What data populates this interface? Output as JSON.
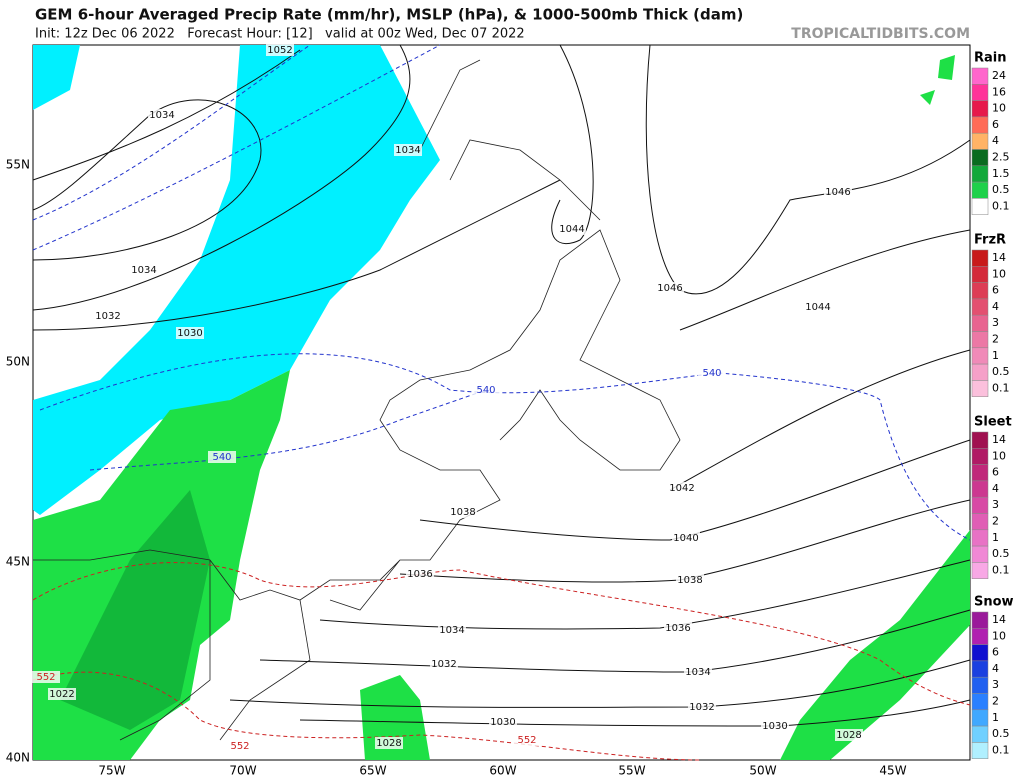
{
  "header": {
    "title": "GEM 6-hour Averaged Precip Rate (mm/hr), MSLP (hPa), & 1000-500mb Thick (dam)",
    "subtitle": "Init: 12z Dec 06 2022   Forecast Hour: [12]   valid at 00z Wed, Dec 07 2022",
    "watermark": "TROPICALTIDBITS.COM"
  },
  "map": {
    "lat_labels": [
      "55N",
      "50N",
      "45N",
      "40N"
    ],
    "lon_labels": [
      "75W",
      "70W",
      "65W",
      "60W",
      "55W",
      "50W",
      "45W"
    ],
    "contour_labels": [
      "1052",
      "1034",
      "1034",
      "1044",
      "1046",
      "1046",
      "1044",
      "1034",
      "1032",
      "1030",
      "540",
      "540",
      "540",
      "1042",
      "1038",
      "1040",
      "1036",
      "1038",
      "1034",
      "1036",
      "1032",
      "1034",
      "1032",
      "552",
      "1022",
      "1030",
      "1030",
      "1028",
      "1028",
      "552",
      "552"
    ]
  },
  "legend": [
    {
      "title": "Rain",
      "labels": [
        "24",
        "16",
        "10",
        "6",
        "4",
        "2.5",
        "1.5",
        "0.5",
        "0.1"
      ]
    },
    {
      "title": "FrzR",
      "labels": [
        "14",
        "10",
        "6",
        "4",
        "3",
        "2",
        "1",
        "0.5",
        "0.1"
      ]
    },
    {
      "title": "Sleet",
      "labels": [
        "14",
        "10",
        "6",
        "4",
        "3",
        "2",
        "1",
        "0.5",
        "0.1"
      ]
    },
    {
      "title": "Snow",
      "labels": [
        "14",
        "10",
        "6",
        "4",
        "3",
        "2",
        "1",
        "0.5",
        "0.1"
      ]
    }
  ]
}
